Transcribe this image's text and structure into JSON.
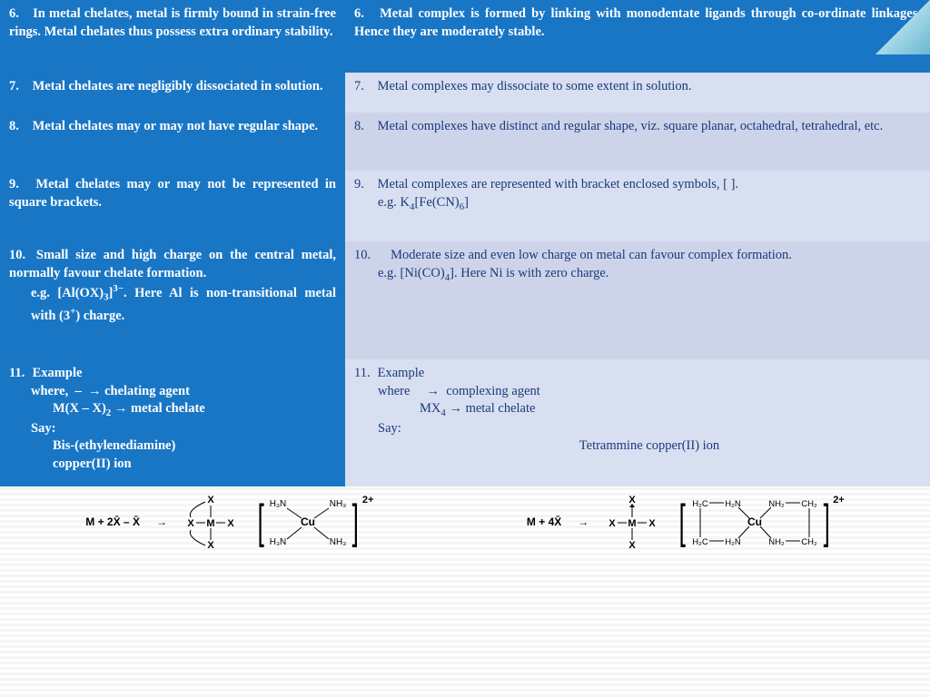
{
  "colors": {
    "header_bg": "#1976c5",
    "header_fg": "#ffffff",
    "pale1": "#d8dff0",
    "pale2": "#cdd4ea",
    "body_fg": "#1a3a7a"
  },
  "rows": [
    {
      "left_num": "6.",
      "left_text": "In metal chelates, metal is firmly bound in strain-free rings. Metal chelates thus possess extra ordinary stability.",
      "right_num": "6.",
      "right_text": "Metal complex is formed by linking with monodentate ligands through co-ordinate linkages. Hence they are moderately stable.",
      "right_style": "dark",
      "left_h": 80,
      "right_h": 80
    },
    {
      "left_num": "7.",
      "left_text": "Metal chelates are negligibly dissociated in solution.",
      "right_num": "7.",
      "right_text": "Metal complexes may dissociate to some extent in solution.",
      "right_style": "pale1",
      "left_h": 44,
      "right_h": 44
    },
    {
      "left_num": "8.",
      "left_text": "Metal chelates may or may not have regular shape.",
      "right_num": "8.",
      "right_text": "Metal complexes have distinct and regular shape, viz. square planar, octahedral, tetrahedral, etc.",
      "right_style": "pale2",
      "left_h": 64,
      "right_h": 64
    },
    {
      "left_num": "9.",
      "left_text": "Metal chelates may or may not be represented in square brackets.",
      "right_num": "9.",
      "right_lines": [
        "Metal complexes are represented with bracket enclosed symbols, [ ].",
        "e.g. K<span class='sub'>4</span>[Fe(CN)<span class='sub'>6</span>]"
      ],
      "right_style": "pale1",
      "left_h": 78,
      "right_h": 78
    },
    {
      "left_num": "10.",
      "left_lines": [
        "Small size and high charge on the central metal, normally favour chelate formation.",
        "e.g. [Al(OX)<span class='sub'>3</span>]<span class='sup'>3−</span>. Here Al is non-transitional metal with (3<span class='sup'>+</span>) charge."
      ],
      "right_num": "10.",
      "right_lines": [
        "&nbsp;&nbsp;&nbsp;&nbsp;Moderate size and even low charge on metal can favour complex formation.",
        "e.g. [Ni(CO)<span class='sub'>4</span>]. Here Ni is with zero charge."
      ],
      "right_style": "pale2",
      "left_h": 130,
      "right_h": 130
    },
    {
      "left_num": "11.",
      "left_lines": [
        "Example",
        "<div style='padding-left:0'>where,&nbsp;&nbsp;–&nbsp;&nbsp;<span class='arrow'>→</span> chelating agent</div>",
        "<div class='indent'>M(X – X)<span class='sub'>2</span> <span class='arrow'>→</span> metal chelate</div>",
        "<div style='padding-left:0'>Say:</div>",
        "<div class='indent'>Bis-(ethylenediamine)</div>",
        "<div class='indent'>copper(II) ion</div>"
      ],
      "right_num": "11.",
      "right_lines": [
        "Example",
        "<div>where&nbsp;&nbsp;&nbsp;&nbsp;&nbsp;<span class='arrow'>→</span>&nbsp;&nbsp;complexing agent</div>",
        "<div class='indent2'>MX<span class='sub'>4</span> <span class='arrow'>→</span> metal chelate</div>",
        "<div>Say:</div>",
        "<div style='text-align:center'>Tetrammine copper(II) ion</div>"
      ],
      "right_style": "pale1",
      "left_h": 140,
      "right_h": 140
    }
  ],
  "diagrams": {
    "eq1": "M  +  2X̄ – X̄",
    "eq2": "M  +  4X̄",
    "charge": "2+",
    "cu_complex_1": {
      "center": "Cu",
      "ligands": [
        "H₃N",
        "NH₃",
        "H₃N",
        "NH₃"
      ]
    },
    "cu_complex_2": {
      "center": "Cu",
      "ligands": [
        "H₂C",
        "H₂N",
        "NH₂",
        "CH₂",
        "H₂C",
        "H₂N",
        "NH₂",
        "CH₂"
      ]
    }
  }
}
